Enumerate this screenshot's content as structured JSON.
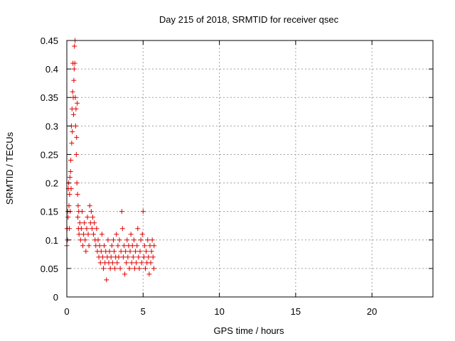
{
  "chart_data": {
    "type": "scatter",
    "title": "Day 215 of 2018, SRMTID for receiver qsec",
    "xlabel": "GPS time / hours",
    "ylabel": "SRMTID / TECUs",
    "xlim": [
      0,
      24
    ],
    "ylim": [
      0,
      0.45
    ],
    "xticks": [
      0,
      5,
      10,
      15,
      20
    ],
    "xtick_labels": [
      "0",
      "5",
      "10",
      "15",
      "20"
    ],
    "yticks": [
      0,
      0.05,
      0.1,
      0.15,
      0.2,
      0.25,
      0.3,
      0.35,
      0.4,
      0.45
    ],
    "ytick_labels": [
      "0",
      "0.05",
      "0.1",
      "0.15",
      "0.2",
      "0.25",
      "0.3",
      "0.35",
      "0.4",
      "0.45"
    ],
    "grid": true,
    "marker": "+",
    "series": [
      {
        "name": "SRMTID",
        "color": "#e00000",
        "points": [
          [
            0.0,
            0.09
          ],
          [
            0.02,
            0.12
          ],
          [
            0.04,
            0.1
          ],
          [
            0.06,
            0.15
          ],
          [
            0.08,
            0.14
          ],
          [
            0.1,
            0.19
          ],
          [
            0.12,
            0.2
          ],
          [
            0.14,
            0.16
          ],
          [
            0.16,
            0.12
          ],
          [
            0.18,
            0.18
          ],
          [
            0.2,
            0.21
          ],
          [
            0.22,
            0.15
          ],
          [
            0.24,
            0.22
          ],
          [
            0.26,
            0.24
          ],
          [
            0.28,
            0.19
          ],
          [
            0.3,
            0.3
          ],
          [
            0.32,
            0.27
          ],
          [
            0.34,
            0.33
          ],
          [
            0.36,
            0.29
          ],
          [
            0.38,
            0.36
          ],
          [
            0.4,
            0.41
          ],
          [
            0.42,
            0.35
          ],
          [
            0.44,
            0.32
          ],
          [
            0.46,
            0.38
          ],
          [
            0.48,
            0.4
          ],
          [
            0.5,
            0.44
          ],
          [
            0.52,
            0.41
          ],
          [
            0.54,
            0.45
          ],
          [
            0.56,
            0.35
          ],
          [
            0.58,
            0.3
          ],
          [
            0.6,
            0.33
          ],
          [
            0.62,
            0.25
          ],
          [
            0.64,
            0.28
          ],
          [
            0.66,
            0.2
          ],
          [
            0.68,
            0.34
          ],
          [
            0.7,
            0.18
          ],
          [
            0.72,
            0.14
          ],
          [
            0.74,
            0.16
          ],
          [
            0.76,
            0.12
          ],
          [
            0.78,
            0.15
          ],
          [
            0.8,
            0.11
          ],
          [
            0.85,
            0.13
          ],
          [
            0.9,
            0.1
          ],
          [
            0.95,
            0.12
          ],
          [
            1.0,
            0.15
          ],
          [
            1.05,
            0.09
          ],
          [
            1.1,
            0.11
          ],
          [
            1.15,
            0.13
          ],
          [
            1.2,
            0.1
          ],
          [
            1.25,
            0.08
          ],
          [
            1.3,
            0.12
          ],
          [
            1.35,
            0.14
          ],
          [
            1.4,
            0.11
          ],
          [
            1.45,
            0.09
          ],
          [
            1.5,
            0.16
          ],
          [
            1.55,
            0.13
          ],
          [
            1.6,
            0.15
          ],
          [
            1.65,
            0.12
          ],
          [
            1.7,
            0.14
          ],
          [
            1.75,
            0.11
          ],
          [
            1.8,
            0.13
          ],
          [
            1.85,
            0.1
          ],
          [
            1.9,
            0.09
          ],
          [
            1.95,
            0.12
          ],
          [
            2.0,
            0.08
          ],
          [
            2.05,
            0.1
          ],
          [
            2.1,
            0.07
          ],
          [
            2.15,
            0.09
          ],
          [
            2.2,
            0.06
          ],
          [
            2.25,
            0.08
          ],
          [
            2.3,
            0.11
          ],
          [
            2.35,
            0.07
          ],
          [
            2.4,
            0.05
          ],
          [
            2.45,
            0.09
          ],
          [
            2.5,
            0.06
          ],
          [
            2.55,
            0.08
          ],
          [
            2.6,
            0.03
          ],
          [
            2.65,
            0.07
          ],
          [
            2.7,
            0.1
          ],
          [
            2.75,
            0.06
          ],
          [
            2.8,
            0.08
          ],
          [
            2.85,
            0.05
          ],
          [
            2.9,
            0.07
          ],
          [
            2.95,
            0.09
          ],
          [
            3.0,
            0.06
          ],
          [
            3.05,
            0.1
          ],
          [
            3.1,
            0.08
          ],
          [
            3.15,
            0.05
          ],
          [
            3.2,
            0.07
          ],
          [
            3.25,
            0.11
          ],
          [
            3.3,
            0.06
          ],
          [
            3.35,
            0.09
          ],
          [
            3.4,
            0.07
          ],
          [
            3.45,
            0.1
          ],
          [
            3.5,
            0.05
          ],
          [
            3.55,
            0.08
          ],
          [
            3.6,
            0.15
          ],
          [
            3.65,
            0.12
          ],
          [
            3.7,
            0.07
          ],
          [
            3.75,
            0.09
          ],
          [
            3.8,
            0.04
          ],
          [
            3.85,
            0.08
          ],
          [
            3.9,
            0.06
          ],
          [
            3.95,
            0.1
          ],
          [
            4.0,
            0.07
          ],
          [
            4.05,
            0.09
          ],
          [
            4.1,
            0.05
          ],
          [
            4.15,
            0.08
          ],
          [
            4.2,
            0.11
          ],
          [
            4.25,
            0.06
          ],
          [
            4.3,
            0.09
          ],
          [
            4.35,
            0.07
          ],
          [
            4.4,
            0.1
          ],
          [
            4.45,
            0.05
          ],
          [
            4.5,
            0.08
          ],
          [
            4.55,
            0.06
          ],
          [
            4.6,
            0.09
          ],
          [
            4.65,
            0.12
          ],
          [
            4.7,
            0.07
          ],
          [
            4.75,
            0.05
          ],
          [
            4.8,
            0.08
          ],
          [
            4.85,
            0.1
          ],
          [
            4.9,
            0.06
          ],
          [
            4.95,
            0.11
          ],
          [
            5.0,
            0.15
          ],
          [
            5.05,
            0.07
          ],
          [
            5.1,
            0.09
          ],
          [
            5.15,
            0.05
          ],
          [
            5.2,
            0.08
          ],
          [
            5.25,
            0.06
          ],
          [
            5.3,
            0.1
          ],
          [
            5.35,
            0.07
          ],
          [
            5.4,
            0.04
          ],
          [
            5.45,
            0.09
          ],
          [
            5.5,
            0.06
          ],
          [
            5.55,
            0.08
          ],
          [
            5.6,
            0.1
          ],
          [
            5.65,
            0.07
          ],
          [
            5.7,
            0.05
          ],
          [
            5.72,
            0.09
          ]
        ]
      }
    ]
  }
}
